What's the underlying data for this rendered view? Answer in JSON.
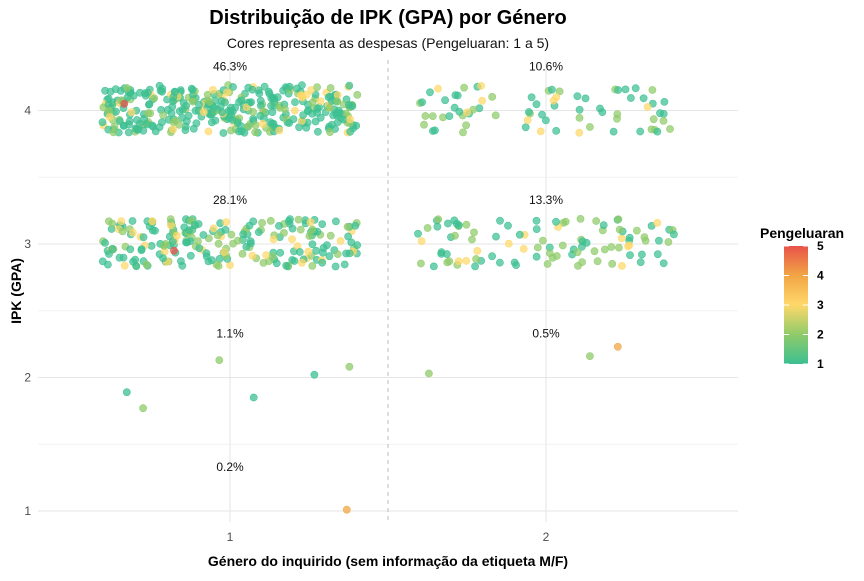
{
  "chart_data": {
    "type": "scatter",
    "title": "Distribuição de IPK (GPA) por Género",
    "subtitle": "Cores representa as despesas (Pengeluaran: 1 a 5)",
    "xlabel": "Género do inquirido (sem informação da etiqueta M/F)",
    "ylabel": "IPK (GPA)",
    "x_categories": [
      "1",
      "2"
    ],
    "y_ticks": [
      "1",
      "2",
      "3",
      "4"
    ],
    "ylim": [
      0.9,
      4.35
    ],
    "grid": true,
    "legend": {
      "title": "Pengeluaran",
      "placement": "right",
      "ticks": [
        "5",
        "4",
        "3",
        "2",
        "1"
      ],
      "range": [
        1,
        5
      ],
      "colors": {
        "low": "#3cbf91",
        "mid_low": "#8fcb6a",
        "mid": "#fed86a",
        "mid_high": "#f2a545",
        "high": "#e8534a"
      }
    },
    "annotations": [
      {
        "gender": 1,
        "ipk": 4,
        "text": "46.3%"
      },
      {
        "gender": 2,
        "ipk": 4,
        "text": "10.6%"
      },
      {
        "gender": 1,
        "ipk": 3,
        "text": "28.1%"
      },
      {
        "gender": 2,
        "ipk": 3,
        "text": "13.3%"
      },
      {
        "gender": 1,
        "ipk": 2,
        "text": "1.1%"
      },
      {
        "gender": 2,
        "ipk": 2,
        "text": "0.5%"
      },
      {
        "gender": 1,
        "ipk": 1,
        "text": "0.2%"
      }
    ],
    "series": [
      {
        "gender": 1,
        "ipk": 4,
        "count": 360,
        "colors": [
          1,
          1,
          1,
          1,
          1,
          1,
          1,
          2,
          2,
          3
        ]
      },
      {
        "gender": 2,
        "ipk": 4,
        "count": 75,
        "colors": [
          1,
          1,
          1,
          2,
          2,
          3
        ]
      },
      {
        "gender": 1,
        "ipk": 3,
        "count": 220,
        "colors": [
          1,
          1,
          1,
          1,
          2,
          2,
          3
        ]
      },
      {
        "gender": 2,
        "ipk": 3,
        "count": 100,
        "colors": [
          1,
          1,
          1,
          2,
          2,
          3
        ]
      }
    ],
    "points": [
      {
        "gender": 1,
        "ipk": 4.05,
        "pengeluaran": 5
      },
      {
        "gender": 1,
        "ipk": 2.95,
        "pengeluaran": 5
      },
      {
        "gender": 2,
        "ipk": 2.16,
        "pengeluaran": 2
      },
      {
        "gender": 2,
        "ipk": 2.23,
        "pengeluaran": 4
      },
      {
        "gender": 2,
        "ipk": 2.03,
        "pengeluaran": 2
      },
      {
        "gender": 1,
        "ipk": 1.85,
        "pengeluaran": 1
      },
      {
        "gender": 1,
        "ipk": 1.77,
        "pengeluaran": 2
      },
      {
        "gender": 1,
        "ipk": 2.08,
        "pengeluaran": 2
      },
      {
        "gender": 1,
        "ipk": 2.13,
        "pengeluaran": 2
      },
      {
        "gender": 1,
        "ipk": 2.02,
        "pengeluaran": 1
      },
      {
        "gender": 1,
        "ipk": 1.89,
        "pengeluaran": 1
      },
      {
        "gender": 1,
        "ipk": 1.01,
        "pengeluaran": 4
      }
    ]
  }
}
